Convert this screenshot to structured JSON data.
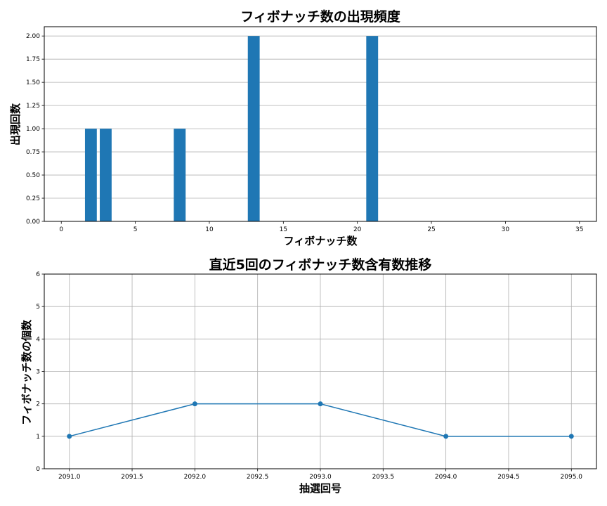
{
  "chart_data": [
    {
      "type": "bar",
      "title": "フィボナッチ数の出現頻度",
      "xlabel": "フィボナッチ数",
      "ylabel": "出現回数",
      "x": [
        2,
        3,
        8,
        13,
        21
      ],
      "values": [
        1,
        1,
        1,
        2,
        2
      ],
      "xlim": [
        -1.15,
        36.15
      ],
      "ylim": [
        0,
        2.1
      ],
      "xticks": [
        0,
        5,
        10,
        15,
        20,
        25,
        30,
        35
      ],
      "xtick_labels": [
        "0",
        "5",
        "10",
        "15",
        "20",
        "25",
        "30",
        "35"
      ],
      "yticks": [
        0,
        0.25,
        0.5,
        0.75,
        1.0,
        1.25,
        1.5,
        1.75,
        2.0
      ],
      "ytick_labels": [
        "0.00",
        "0.25",
        "0.50",
        "0.75",
        "1.00",
        "1.25",
        "1.50",
        "1.75",
        "2.00"
      ],
      "grid": "y",
      "color": "#1f77b4"
    },
    {
      "type": "line",
      "title": "直近5回のフィボナッチ数含有数推移",
      "xlabel": "抽選回号",
      "ylabel": "フィボナッチ数の個数",
      "x": [
        2091,
        2092,
        2093,
        2094,
        2095
      ],
      "values": [
        1,
        2,
        2,
        1,
        1
      ],
      "xlim": [
        2090.8,
        2095.2
      ],
      "ylim": [
        0,
        6
      ],
      "xticks": [
        2091.0,
        2091.5,
        2092.0,
        2092.5,
        2093.0,
        2093.5,
        2094.0,
        2094.5,
        2095.0
      ],
      "xtick_labels": [
        "2091.0",
        "2091.5",
        "2092.0",
        "2092.5",
        "2093.0",
        "2093.5",
        "2094.0",
        "2094.5",
        "2095.0"
      ],
      "yticks": [
        0,
        1,
        2,
        3,
        4,
        5,
        6
      ],
      "ytick_labels": [
        "0",
        "1",
        "2",
        "3",
        "4",
        "5",
        "6"
      ],
      "grid": "both",
      "markers": true,
      "color": "#1f77b4"
    }
  ]
}
